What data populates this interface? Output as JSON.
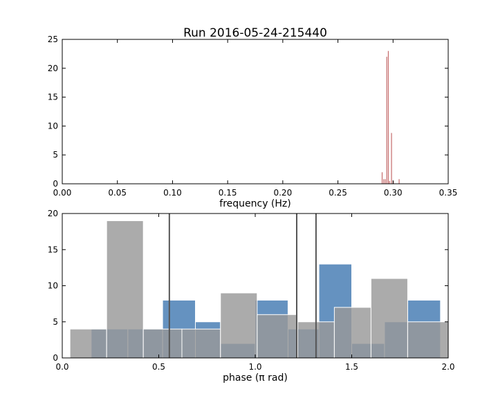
{
  "figure": {
    "title": "Run 2016-05-24-215440"
  },
  "chart_data": [
    {
      "type": "bar",
      "xlabel": "frequency (Hz)",
      "ylabel": "",
      "xlim": [
        0.0,
        0.35
      ],
      "ylim": [
        0,
        25
      ],
      "xticks": [
        0.0,
        0.05,
        0.1,
        0.15,
        0.2,
        0.25,
        0.3,
        0.35
      ],
      "xtick_labels": [
        "0.00",
        "0.05",
        "0.10",
        "0.15",
        "0.20",
        "0.25",
        "0.30",
        "0.35"
      ],
      "yticks": [
        0,
        5,
        10,
        15,
        20,
        25
      ],
      "ytick_labels": [
        "0",
        "5",
        "10",
        "15",
        "20",
        "25"
      ],
      "grid": false,
      "color": "#c46a6a",
      "series": [
        {
          "x": [
            0.2901,
            0.2915,
            0.2929,
            0.2943,
            0.2957,
            0.2968,
            0.2986,
            0.3003,
            0.3055
          ],
          "values": [
            2.0,
            0.8,
            0.8,
            22.0,
            23.0,
            0.5,
            8.8,
            0.5,
            0.8
          ]
        }
      ]
    },
    {
      "type": "bar",
      "xlabel": "phase (π rad)",
      "ylabel": "",
      "xlim": [
        0.0,
        2.0
      ],
      "ylim": [
        0,
        20
      ],
      "xticks": [
        0.0,
        0.5,
        1.0,
        1.5,
        2.0
      ],
      "xtick_labels": [
        "0.0",
        "0.5",
        "1.0",
        "1.5",
        "2.0"
      ],
      "yticks": [
        0,
        5,
        10,
        15,
        20
      ],
      "ytick_labels": [
        "0",
        "5",
        "10",
        "15",
        "20"
      ],
      "grid": false,
      "series": [
        {
          "color": "#4a7fb5",
          "bins": [
            [
              0.15,
              0.34,
              4
            ],
            [
              0.34,
              0.52,
              4
            ],
            [
              0.52,
              0.69,
              8
            ],
            [
              0.69,
              0.82,
              5
            ],
            [
              0.82,
              1.0,
              2
            ],
            [
              1.0,
              1.17,
              8
            ],
            [
              1.17,
              1.33,
              4
            ],
            [
              1.33,
              1.5,
              13
            ],
            [
              1.5,
              1.67,
              2
            ],
            [
              1.67,
              1.79,
              5
            ],
            [
              1.79,
              1.96,
              8
            ]
          ]
        },
        {
          "color": "#999999",
          "bins": [
            [
              0.04,
              0.23,
              4
            ],
            [
              0.23,
              0.42,
              19
            ],
            [
              0.42,
              0.62,
              4
            ],
            [
              0.62,
              0.82,
              4
            ],
            [
              0.82,
              1.01,
              9
            ],
            [
              1.01,
              1.22,
              6
            ],
            [
              1.22,
              1.41,
              5
            ],
            [
              1.41,
              1.6,
              7
            ],
            [
              1.6,
              1.79,
              11
            ],
            [
              1.79,
              2.0,
              5
            ]
          ]
        }
      ],
      "vlines": {
        "x": [
          0.555,
          1.215,
          1.315
        ],
        "color": "#555555"
      }
    }
  ]
}
